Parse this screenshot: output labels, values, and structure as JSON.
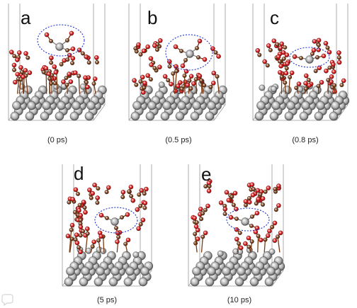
{
  "figure": {
    "panels": [
      {
        "label": "a",
        "time": "(0 ps)"
      },
      {
        "label": "b",
        "time": "(0.5 ps)"
      },
      {
        "label": "c",
        "time": "(0.8 ps)"
      },
      {
        "label": "d",
        "time": "(5 ps)"
      },
      {
        "label": "e",
        "time": "(10 ps)"
      }
    ]
  },
  "colors": {
    "metal": "#b3b3b3",
    "carbon": "#7a3a14",
    "oxygen": "#e01414",
    "highlight_ellipse": "#2233cc",
    "box": "#9a9a9a"
  }
}
